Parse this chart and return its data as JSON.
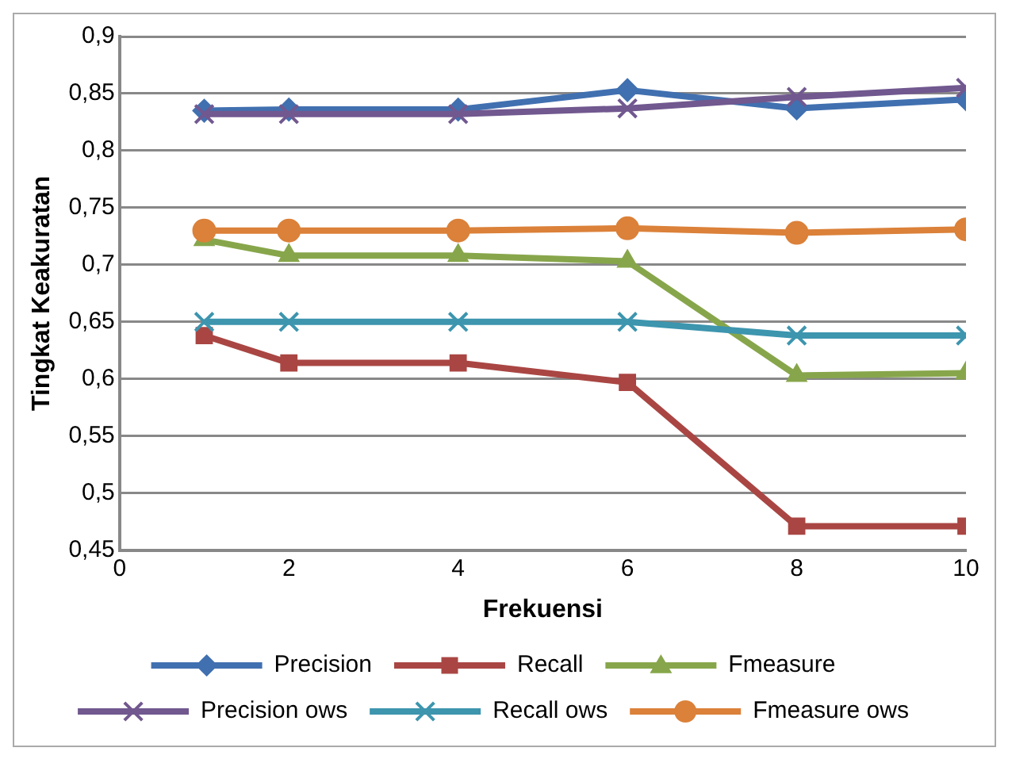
{
  "chart_data": {
    "type": "line",
    "xlabel": "Frekuensi",
    "ylabel": "Tingkat Keakuratan",
    "x": [
      1,
      2,
      4,
      6,
      8,
      10
    ],
    "xlim": [
      0,
      10
    ],
    "xticks": [
      0,
      2,
      4,
      6,
      8,
      10
    ],
    "ylim": [
      0.45,
      0.9
    ],
    "yticks": [
      {
        "value": 0.45,
        "label": "0,45"
      },
      {
        "value": 0.5,
        "label": "0,5"
      },
      {
        "value": 0.55,
        "label": "0,55"
      },
      {
        "value": 0.6,
        "label": "0,6"
      },
      {
        "value": 0.65,
        "label": "0,65"
      },
      {
        "value": 0.7,
        "label": "0,7"
      },
      {
        "value": 0.75,
        "label": "0,75"
      },
      {
        "value": 0.8,
        "label": "0,8"
      },
      {
        "value": 0.85,
        "label": "0,85"
      },
      {
        "value": 0.9,
        "label": "0,9"
      }
    ],
    "grid": "y",
    "legend": "bottom",
    "series": [
      {
        "name": "Precision",
        "color": "#4170b0",
        "marker": "diamond",
        "values": [
          0.835,
          0.836,
          0.836,
          0.853,
          0.837,
          0.845
        ]
      },
      {
        "name": "Recall",
        "color": "#a94643",
        "marker": "square",
        "values": [
          0.638,
          0.614,
          0.614,
          0.597,
          0.471,
          0.471
        ]
      },
      {
        "name": "Fmeasure",
        "color": "#87a64b",
        "marker": "triangle",
        "values": [
          0.722,
          0.708,
          0.708,
          0.703,
          0.603,
          0.605
        ]
      },
      {
        "name": "Precision ows",
        "color": "#71588f",
        "marker": "cross",
        "values": [
          0.832,
          0.832,
          0.832,
          0.837,
          0.847,
          0.855
        ]
      },
      {
        "name": "Recall ows",
        "color": "#3d95ae",
        "marker": "cross",
        "values": [
          0.65,
          0.65,
          0.65,
          0.65,
          0.638,
          0.638
        ]
      },
      {
        "name": "Fmeasure ows",
        "color": "#db8139",
        "marker": "circle",
        "values": [
          0.73,
          0.73,
          0.73,
          0.732,
          0.728,
          0.731
        ]
      }
    ]
  }
}
